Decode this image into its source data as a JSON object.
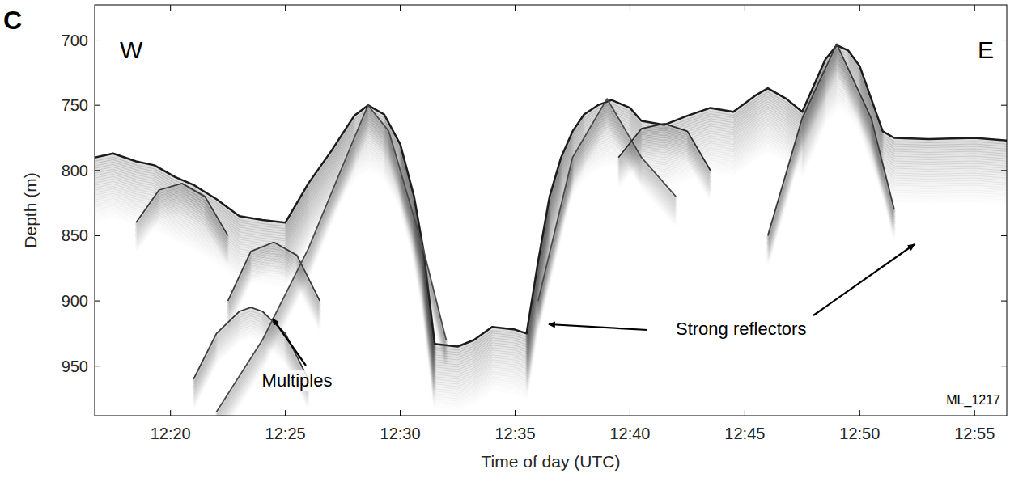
{
  "chart_data": {
    "type": "echogram",
    "panel": "C",
    "x_label": "Time of day (UTC)",
    "y_label": "Depth (m)",
    "xlim": [
      736.7,
      776.4
    ],
    "xticks": [
      {
        "value": 740,
        "label": "12:20"
      },
      {
        "value": 745,
        "label": "12:25"
      },
      {
        "value": 750,
        "label": "12:30"
      },
      {
        "value": 755,
        "label": "12:35"
      },
      {
        "value": 760,
        "label": "12:40"
      },
      {
        "value": 765,
        "label": "12:45"
      },
      {
        "value": 770,
        "label": "12:50"
      },
      {
        "value": 775,
        "label": "12:55"
      }
    ],
    "ylim": [
      988,
      673
    ],
    "yticks": [
      700,
      750,
      800,
      850,
      900,
      950
    ],
    "grid": false,
    "series": [
      {
        "color": "#1c1c1c",
        "x": [
          736.7,
          737.5,
          738.5,
          739.3,
          740.2,
          741,
          742,
          743,
          744,
          745,
          746,
          747,
          748,
          748.6,
          749.3,
          750,
          750.6,
          751,
          751.5,
          752.5,
          753.2,
          754,
          755,
          755.5,
          756,
          756.5,
          757,
          757.5,
          758,
          758.6,
          759.2,
          760,
          760.5,
          761.5,
          762.5,
          763.5,
          764.5,
          765.5,
          766,
          766.8,
          767.5,
          768,
          768.5,
          769,
          769.5,
          770,
          770.5,
          771,
          771.5,
          773,
          775,
          776.4
        ],
        "values": [
          790,
          787,
          793,
          796,
          805,
          811,
          822,
          835,
          838,
          840,
          810,
          785,
          758,
          750,
          757,
          780,
          820,
          860,
          933,
          935,
          930,
          920,
          922,
          925,
          870,
          820,
          790,
          770,
          757,
          750,
          746,
          752,
          762,
          765,
          758,
          752,
          755,
          742,
          737,
          745,
          755,
          735,
          715,
          704,
          708,
          720,
          745,
          770,
          775,
          776,
          775,
          777
        ]
      },
      {
        "color": "#3a3a3a",
        "x": [
          741,
          742,
          743,
          743.5,
          744,
          745,
          746
        ],
        "values": [
          960,
          925,
          908,
          905,
          908,
          925,
          960
        ]
      },
      {
        "color": "#3a3a3a",
        "x": [
          742.5,
          743.5,
          744.5,
          745.5,
          746.5
        ],
        "values": [
          900,
          862,
          855,
          865,
          900
        ]
      },
      {
        "color": "#3a3a3a",
        "x": [
          738.5,
          739.5,
          740.5,
          741.5,
          742.5
        ],
        "values": [
          840,
          815,
          810,
          820,
          850
        ]
      },
      {
        "color": "#4a4a4a",
        "x": [
          742,
          744,
          746,
          748,
          748.6,
          749.5,
          751,
          752
        ],
        "values": [
          985,
          930,
          860,
          775,
          750,
          770,
          860,
          930
        ]
      },
      {
        "color": "#3a3a3a",
        "x": [
          766,
          767.5,
          769,
          770.5,
          771.5
        ],
        "values": [
          850,
          760,
          703,
          760,
          830
        ]
      },
      {
        "color": "#4a4a4a",
        "x": [
          756,
          757.5,
          759,
          760.5,
          762
        ],
        "values": [
          900,
          790,
          745,
          790,
          820
        ]
      },
      {
        "color": "#2a2a2a",
        "x": [
          759.5,
          760.5,
          761.5,
          762.5,
          763.5
        ],
        "values": [
          790,
          768,
          764,
          770,
          800
        ]
      }
    ],
    "annotations": [
      "W",
      "E",
      "Multiples",
      "Strong reflectors",
      "ML_1217"
    ]
  }
}
